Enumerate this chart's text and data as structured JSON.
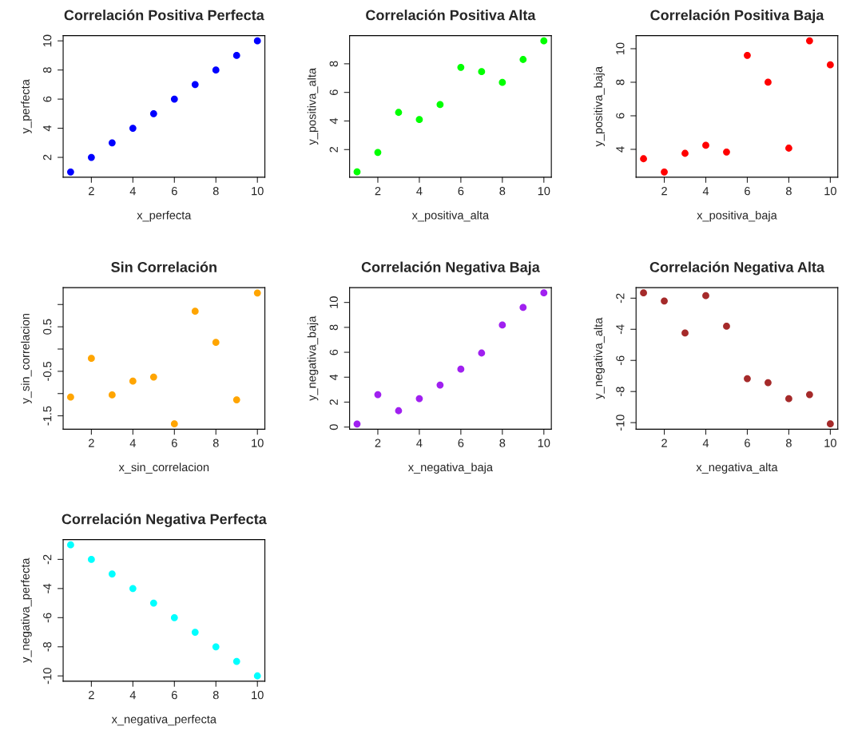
{
  "chart_data": [
    {
      "type": "scatter",
      "title": "Correlación Positiva Perfecta",
      "xlabel": "x_perfecta",
      "ylabel": "y_perfecta",
      "x": [
        1,
        2,
        3,
        4,
        5,
        6,
        7,
        8,
        9,
        10
      ],
      "series": [
        {
          "color": "#0000ff",
          "values": [
            1,
            2,
            3,
            4,
            5,
            6,
            7,
            8,
            9,
            10
          ]
        }
      ],
      "xlim": [
        0.64,
        10.36
      ],
      "ylim": [
        0.64,
        10.36
      ],
      "xticks": [
        2,
        4,
        6,
        8,
        10
      ],
      "yticks": [
        2,
        4,
        6,
        8,
        10
      ],
      "marker": "circle",
      "grid": false
    },
    {
      "type": "scatter",
      "title": "Correlación Positiva Alta",
      "xlabel": "x_positiva_alta",
      "ylabel": "y_positiva_alta",
      "x": [
        1,
        2,
        3,
        4,
        5,
        6,
        7,
        8,
        9,
        10
      ],
      "series": [
        {
          "color": "#00ff00",
          "values": [
            0.44,
            1.8,
            4.6,
            4.1,
            5.15,
            7.75,
            7.45,
            6.7,
            8.3,
            9.6
          ]
        }
      ],
      "xlim": [
        0.64,
        10.36
      ],
      "ylim": [
        0.07,
        9.97
      ],
      "xticks": [
        2,
        4,
        6,
        8,
        10
      ],
      "yticks": [
        2,
        4,
        6,
        8
      ],
      "marker": "circle",
      "grid": false
    },
    {
      "type": "scatter",
      "title": "Correlación Positiva Baja",
      "xlabel": "x_positiva_baja",
      "ylabel": "y_positiva_baja",
      "x": [
        1,
        2,
        3,
        4,
        5,
        6,
        7,
        8,
        9,
        10
      ],
      "series": [
        {
          "color": "#ff0000",
          "values": [
            3.44,
            2.65,
            3.76,
            4.24,
            3.84,
            9.6,
            8.0,
            4.07,
            10.47,
            9.04
          ]
        }
      ],
      "xlim": [
        0.64,
        10.36
      ],
      "ylim": [
        2.34,
        10.78
      ],
      "xticks": [
        2,
        4,
        6,
        8,
        10
      ],
      "yticks": [
        4,
        6,
        8,
        10
      ],
      "marker": "circle",
      "grid": false
    },
    {
      "type": "scatter",
      "title": "Sin Correlación",
      "xlabel": "x_sin_correlacion",
      "ylabel": "y_sin_correlacion",
      "x": [
        1,
        2,
        3,
        4,
        5,
        6,
        7,
        8,
        9,
        10
      ],
      "series": [
        {
          "color": "#ffa500",
          "values": [
            -1.08,
            -0.21,
            -1.03,
            -0.72,
            -0.63,
            -1.68,
            0.85,
            0.15,
            -1.14,
            1.26
          ]
        }
      ],
      "xlim": [
        0.64,
        10.36
      ],
      "ylim": [
        -1.8,
        1.38
      ],
      "xticks": [
        2,
        4,
        6,
        8,
        10
      ],
      "yticks": [
        -1.5,
        {
          "value": -1,
          "label": null
        },
        -0.5,
        {
          "value": 0,
          "label": null
        },
        0.5,
        {
          "value": 1,
          "label": null
        }
      ],
      "marker": "circle",
      "grid": false
    },
    {
      "type": "scatter",
      "title": "Correlación Negativa Baja",
      "xlabel": "x_negativa_baja",
      "ylabel": "y_negativa_baja",
      "x": [
        1,
        2,
        3,
        4,
        5,
        6,
        7,
        8,
        9,
        10
      ],
      "series": [
        {
          "color": "#a020f0",
          "values": [
            0.25,
            2.6,
            1.31,
            2.28,
            3.37,
            4.65,
            5.94,
            8.19,
            9.6,
            10.77
          ]
        }
      ],
      "xlim": [
        0.64,
        10.36
      ],
      "ylim": [
        -0.17,
        11.19
      ],
      "xticks": [
        2,
        4,
        6,
        8,
        10
      ],
      "yticks": [
        0,
        2,
        4,
        6,
        8,
        10
      ],
      "marker": "circle",
      "grid": false
    },
    {
      "type": "scatter",
      "title": "Correlación Negativa Alta",
      "xlabel": "x_negativa_alta",
      "ylabel": "y_negativa_alta",
      "x": [
        1,
        2,
        3,
        4,
        5,
        6,
        7,
        8,
        9,
        10
      ],
      "series": [
        {
          "color": "#a52a2a",
          "values": [
            -1.66,
            -2.18,
            -4.24,
            -1.84,
            -3.8,
            -7.17,
            -7.43,
            -8.46,
            -8.2,
            -10.08
          ]
        }
      ],
      "xlim": [
        0.64,
        10.36
      ],
      "ylim": [
        -10.42,
        -1.32
      ],
      "xticks": [
        2,
        4,
        6,
        8,
        10
      ],
      "yticks": [
        -10,
        -8,
        -6,
        -4,
        -2
      ],
      "marker": "circle",
      "grid": false
    },
    {
      "type": "scatter",
      "title": "Correlación Negativa Perfecta",
      "xlabel": "x_negativa_perfecta",
      "ylabel": "y_negativa_perfecta",
      "x": [
        1,
        2,
        3,
        4,
        5,
        6,
        7,
        8,
        9,
        10
      ],
      "series": [
        {
          "color": "#00ffff",
          "values": [
            -1,
            -2,
            -3,
            -4,
            -5,
            -6,
            -7,
            -8,
            -9,
            -10
          ]
        }
      ],
      "xlim": [
        0.64,
        10.36
      ],
      "ylim": [
        -10.36,
        -0.64
      ],
      "xticks": [
        2,
        4,
        6,
        8,
        10
      ],
      "yticks": [
        -10,
        -8,
        -6,
        -4,
        -2
      ],
      "marker": "circle",
      "grid": false
    }
  ]
}
